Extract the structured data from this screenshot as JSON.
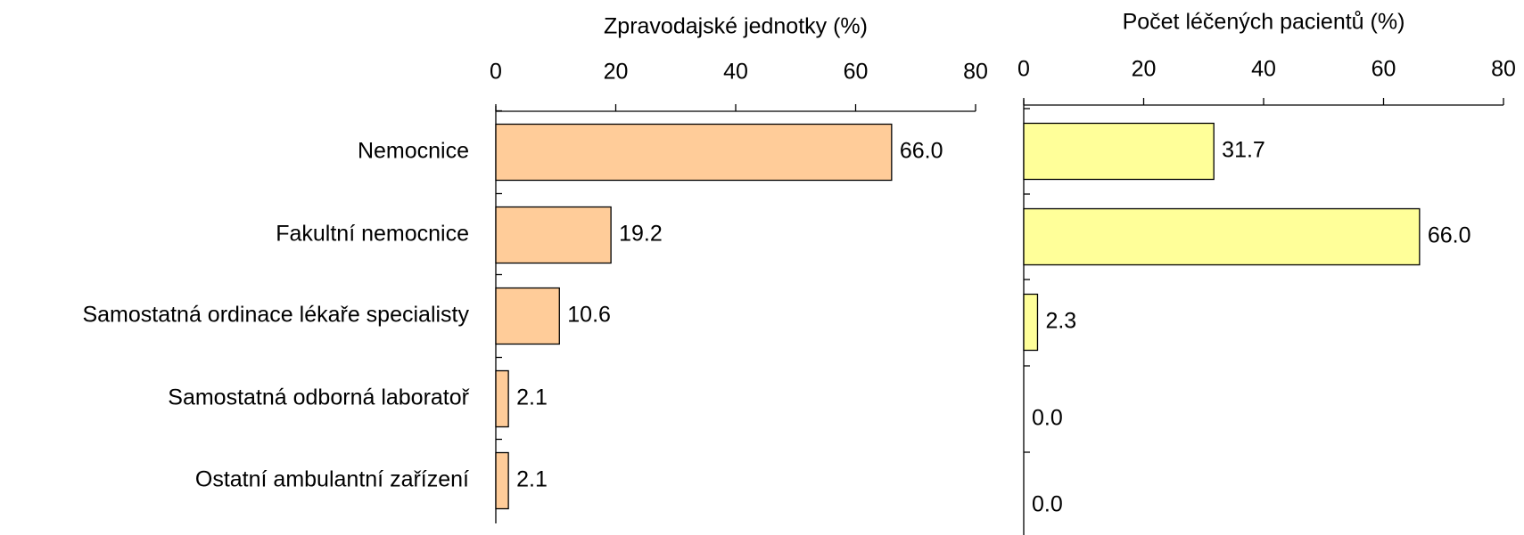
{
  "chart_data": [
    {
      "type": "bar",
      "orientation": "horizontal",
      "title": "Zpravodajské jednotky (%)",
      "categories": [
        "Nemocnice",
        "Fakultní nemocnice",
        "Samostatná ordinace lékaře specialisty",
        "Samostatná odborná laboratoř",
        "Ostatní ambulantní zařízení"
      ],
      "values": [
        66.0,
        19.2,
        10.6,
        2.1,
        2.1
      ],
      "value_labels": [
        "66.0",
        "19.2",
        "10.6",
        "2.1",
        "2.1"
      ],
      "color": "#ffcc99",
      "xlim": [
        0,
        80
      ],
      "xticks": [
        0,
        20,
        40,
        60,
        80
      ]
    },
    {
      "type": "bar",
      "orientation": "horizontal",
      "title": "Počet léčených pacientů (%)",
      "values": [
        31.7,
        66.0,
        2.3,
        0.0,
        0.0
      ],
      "value_labels": [
        "31.7",
        "66.0",
        "2.3",
        "0.0",
        "0.0"
      ],
      "color": "#ffff99",
      "xlim": [
        0,
        80
      ],
      "xticks": [
        0,
        20,
        40,
        60,
        80
      ]
    }
  ]
}
